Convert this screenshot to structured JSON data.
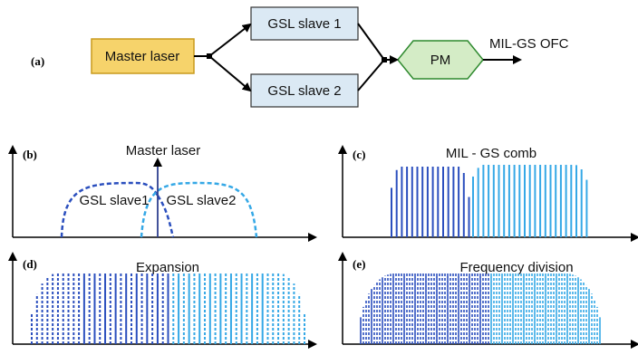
{
  "block_diagram": {
    "panel_label": "(a)",
    "master": "Master laser",
    "slave1": "GSL slave 1",
    "slave2": "GSL slave 2",
    "modulator": "PM",
    "output": "MIL-GS OFC"
  },
  "colors": {
    "master_fill": "#f6d36b",
    "master_stroke": "#c89a1c",
    "slave_fill": "#dbe9f4",
    "slave_stroke": "#333333",
    "pm_fill": "#d4ecc6",
    "pm_stroke": "#2f8a2f",
    "dark_blue": "#2b4fbe",
    "light_blue": "#35a8e6",
    "navy": "#2e3f8f"
  },
  "panels": [
    {
      "label": "(b)",
      "title": "",
      "master_label": "Master laser",
      "slave1_label": "GSL slave1",
      "slave2_label": "GSL slave2"
    },
    {
      "label": "(c)",
      "title": "MIL - GS comb"
    },
    {
      "label": "(d)",
      "title": "Expansion"
    },
    {
      "label": "(e)",
      "title": "Frequency division"
    }
  ]
}
